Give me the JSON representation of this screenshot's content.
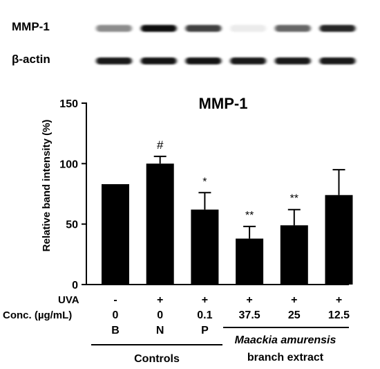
{
  "blot": {
    "rows": [
      {
        "label": "MMP-1",
        "intensities": [
          0.45,
          0.95,
          0.75,
          0.08,
          0.6,
          0.85
        ]
      },
      {
        "label": "β-actin",
        "intensities": [
          0.9,
          0.92,
          0.92,
          0.9,
          0.9,
          0.9
        ]
      }
    ]
  },
  "chart_data": {
    "type": "bar",
    "title": "MMP-1",
    "ylabel": "Relative band intensity (%)",
    "ylim": [
      0,
      150
    ],
    "yticks": [
      "0",
      "50",
      "100",
      "150"
    ],
    "bar_color": "#000000",
    "categories": [
      "B",
      "N",
      "P",
      "37.5",
      "25",
      "12.5"
    ],
    "values": [
      83,
      100,
      62,
      38,
      49,
      74
    ],
    "errors": [
      0,
      6,
      14,
      10,
      13,
      21
    ],
    "annotations": [
      "",
      "#",
      "*",
      "**",
      "**",
      ""
    ]
  },
  "conditions": {
    "uva_label": "UVA",
    "uva": [
      "-",
      "+",
      "+",
      "+",
      "+",
      "+"
    ],
    "conc_label": "Conc. (µg/mL)",
    "conc": [
      "0",
      "0",
      "0.1",
      "37.5",
      "25",
      "12.5"
    ],
    "group": [
      "B",
      "N",
      "P",
      "",
      "",
      ""
    ]
  },
  "groups": {
    "controls": "Controls",
    "extract_line1": "Maackia amurensis",
    "extract_line2": "branch extract"
  }
}
